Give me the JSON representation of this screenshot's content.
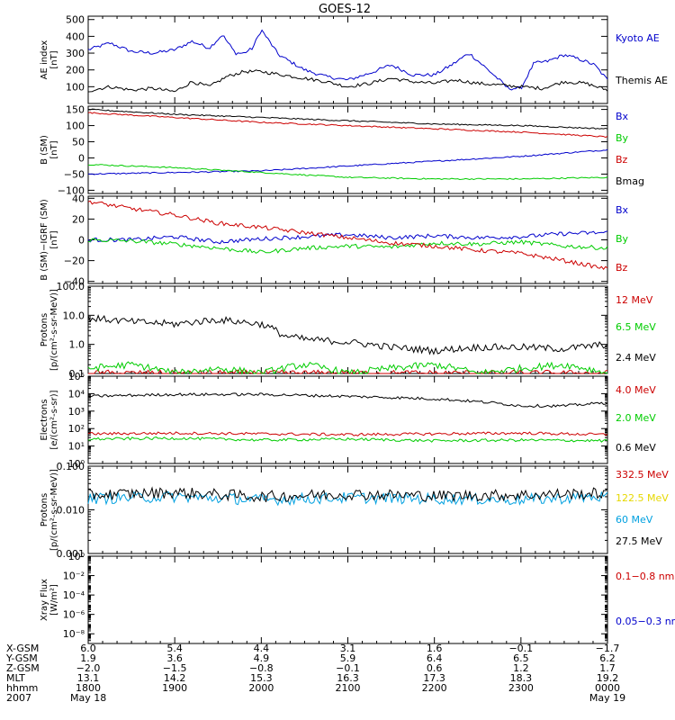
{
  "chart_data": {
    "type": "line",
    "title": "GOES-12",
    "x_range_hours": [
      18,
      24
    ],
    "panels": [
      {
        "id": "ae",
        "ylabel": [
          "AE index",
          "[nT]"
        ],
        "scale": "linear",
        "ylim": [
          0,
          520
        ],
        "ticks": [
          100,
          200,
          300,
          400,
          500
        ],
        "tick_labels": [
          "100",
          "200",
          "300",
          "400",
          "500"
        ],
        "series": [
          {
            "name": "Kyoto AE",
            "color": "#0000cc",
            "x": [
              18.0,
              18.25,
              18.5,
              18.75,
              19.0,
              19.2,
              19.4,
              19.55,
              19.7,
              19.8,
              19.9,
              20.0,
              20.2,
              20.5,
              20.75,
              21.0,
              21.25,
              21.5,
              21.75,
              22.0,
              22.2,
              22.4,
              22.6,
              22.75,
              22.85,
              23.0,
              23.15,
              23.3,
              23.5,
              23.7,
              23.85,
              24.0
            ],
            "values": [
              320,
              360,
              310,
              300,
              320,
              370,
              330,
              410,
              300,
              300,
              330,
              440,
              290,
              200,
              160,
              140,
              180,
              230,
              170,
              170,
              230,
              300,
              210,
              140,
              90,
              90,
              240,
              250,
              290,
              260,
              230,
              140
            ]
          },
          {
            "name": "Themis AE",
            "color": "#000000",
            "x": [
              18.0,
              18.25,
              18.5,
              18.75,
              19.0,
              19.2,
              19.4,
              19.6,
              19.8,
              20.0,
              20.25,
              20.5,
              20.75,
              21.0,
              21.25,
              21.5,
              21.75,
              22.0,
              22.25,
              22.5,
              22.75,
              23.0,
              23.25,
              23.5,
              23.75,
              24.0
            ],
            "values": [
              75,
              100,
              80,
              90,
              70,
              130,
              100,
              160,
              190,
              190,
              170,
              150,
              130,
              100,
              120,
              150,
              130,
              120,
              140,
              120,
              110,
              100,
              90,
              130,
              120,
              80
            ]
          }
        ]
      },
      {
        "id": "b-sm",
        "ylabel": [
          "B (SM)",
          "[nT]"
        ],
        "scale": "linear",
        "ylim": [
          -110,
          160
        ],
        "ticks": [
          -100,
          -50,
          0,
          50,
          100,
          150
        ],
        "tick_labels": [
          "−100",
          "−50",
          "0",
          "50",
          "100",
          "150"
        ],
        "series": [
          {
            "name": "Bx",
            "color": "#0000cc",
            "x": [
              18.0,
              19.0,
              20.0,
              21.0,
              22.0,
              23.0,
              24.0
            ],
            "values": [
              -50,
              -45,
              -40,
              -25,
              -10,
              5,
              25
            ]
          },
          {
            "name": "By",
            "color": "#00cc00",
            "x": [
              18.0,
              19.0,
              20.0,
              21.0,
              22.0,
              23.0,
              24.0
            ],
            "values": [
              -20,
              -30,
              -45,
              -60,
              -65,
              -65,
              -60
            ]
          },
          {
            "name": "Bz",
            "color": "#cc0000",
            "x": [
              18.0,
              19.0,
              20.0,
              21.0,
              22.0,
              23.0,
              24.0
            ],
            "values": [
              140,
              125,
              110,
              100,
              90,
              80,
              65
            ]
          },
          {
            "name": "Bmag",
            "color": "#000000",
            "x": [
              18.0,
              19.0,
              20.0,
              21.0,
              22.0,
              23.0,
              24.0
            ],
            "values": [
              150,
              135,
              125,
              115,
              105,
              100,
              90
            ]
          }
        ]
      },
      {
        "id": "b-minus-igrf",
        "ylabel": [
          "B (SM)−IGRF (SM)",
          "[nT]"
        ],
        "scale": "linear",
        "ylim": [
          -42,
          42
        ],
        "ticks": [
          -40,
          -20,
          0,
          20,
          40
        ],
        "tick_labels": [
          "−40",
          "−20",
          "0",
          "20",
          "40"
        ],
        "series": [
          {
            "name": "Bx",
            "color": "#0000cc",
            "x": [
              18.0,
              18.5,
              19.0,
              19.5,
              20.0,
              20.5,
              21.0,
              21.5,
              22.0,
              22.5,
              23.0,
              23.5,
              24.0
            ],
            "values": [
              0,
              0,
              3,
              -2,
              1,
              3,
              5,
              2,
              4,
              2,
              3,
              6,
              7
            ]
          },
          {
            "name": "By",
            "color": "#00cc00",
            "x": [
              18.0,
              18.5,
              19.0,
              19.5,
              20.0,
              20.5,
              21.0,
              21.5,
              22.0,
              22.5,
              23.0,
              23.5,
              24.0
            ],
            "values": [
              0,
              -1,
              -4,
              -8,
              -12,
              -8,
              -6,
              -7,
              -3,
              -4,
              -2,
              -6,
              -8
            ]
          },
          {
            "name": "Bz",
            "color": "#cc0000",
            "x": [
              18.0,
              18.5,
              19.0,
              19.5,
              20.0,
              20.5,
              21.0,
              21.5,
              22.0,
              22.5,
              23.0,
              23.5,
              24.0
            ],
            "values": [
              37,
              30,
              24,
              16,
              12,
              7,
              2,
              -3,
              -6,
              -10,
              -13,
              -20,
              -28
            ]
          }
        ]
      },
      {
        "id": "protons-low",
        "ylabel": [
          "Protons",
          "[p/(cm²-s-sr-MeV)]"
        ],
        "scale": "log",
        "ylim": [
          0.1,
          100
        ],
        "ticks": [
          0.1,
          1,
          10,
          100
        ],
        "tick_labels": [
          "0.1",
          "1.0",
          "10.0",
          "100.0"
        ],
        "series": [
          {
            "name": "12 MeV",
            "color": "#cc0000",
            "x": [
              18.0,
              24.0
            ],
            "values": [
              0.1,
              0.1
            ]
          },
          {
            "name": "6.5 MeV",
            "color": "#00cc00",
            "x": [
              18.0,
              18.5,
              19.0,
              19.5,
              20.0,
              20.5,
              21.0,
              21.5,
              22.0,
              22.5,
              23.0,
              23.5,
              24.0
            ],
            "values": [
              0.15,
              0.2,
              0.1,
              0.15,
              0.1,
              0.2,
              0.1,
              0.15,
              0.2,
              0.1,
              0.15,
              0.2,
              0.1
            ]
          },
          {
            "name": "2.4 MeV",
            "color": "#000000",
            "x": [
              18.0,
              18.5,
              19.0,
              19.5,
              20.0,
              20.25,
              20.5,
              21.0,
              21.5,
              22.0,
              22.5,
              23.0,
              23.5,
              24.0
            ],
            "values": [
              8,
              6,
              5,
              7,
              5,
              2,
              1.5,
              1.2,
              0.8,
              0.6,
              0.8,
              0.8,
              0.7,
              1.0
            ]
          }
        ]
      },
      {
        "id": "electrons",
        "ylabel": [
          "Electrons",
          "[e/(cm²-s-sr)]"
        ],
        "scale": "log",
        "ylim": [
          1,
          100000
        ],
        "ticks": [
          1,
          10,
          100,
          1000,
          10000,
          100000
        ],
        "tick_labels": [
          "10⁰",
          "10¹",
          "10²",
          "10³",
          "10⁴",
          "10⁵"
        ],
        "series": [
          {
            "name": "4.0 MeV",
            "color": "#cc0000",
            "x": [
              18.0,
              19.0,
              20.0,
              21.0,
              22.0,
              23.0,
              24.0
            ],
            "values": [
              50,
              55,
              50,
              45,
              50,
              55,
              45
            ]
          },
          {
            "name": "2.0 MeV",
            "color": "#00cc00",
            "x": [
              18.0,
              19.0,
              20.0,
              21.0,
              22.0,
              23.0,
              24.0
            ],
            "values": [
              25,
              28,
              22,
              25,
              20,
              22,
              20
            ]
          },
          {
            "name": "0.6 MeV",
            "color": "#000000",
            "x": [
              18.0,
              19.0,
              20.0,
              21.0,
              22.0,
              22.5,
              23.0,
              23.5,
              24.0
            ],
            "values": [
              7000,
              9000,
              9000,
              7000,
              5000,
              3500,
              2000,
              2000,
              3000
            ]
          }
        ]
      },
      {
        "id": "protons-high",
        "ylabel": [
          "Protons",
          "[p/(cm²-s-sr-MeV)]"
        ],
        "scale": "log",
        "ylim": [
          0.001,
          0.1
        ],
        "ticks": [
          0.001,
          0.01,
          0.1
        ],
        "tick_labels": [
          "0.001",
          "0.010",
          "0.100"
        ],
        "series": [
          {
            "name": "332.5 MeV",
            "color": "#cc0000",
            "x": [],
            "values": []
          },
          {
            "name": "122.5 MeV",
            "color": "#e6d800",
            "x": [],
            "values": []
          },
          {
            "name": "60 MeV",
            "color": "#00a0e0",
            "x": [
              18.0,
              19.0,
              20.0,
              21.0,
              22.0,
              23.0,
              24.0
            ],
            "values": [
              0.018,
              0.02,
              0.017,
              0.019,
              0.018,
              0.017,
              0.02
            ]
          },
          {
            "name": "27.5 MeV",
            "color": "#000000",
            "x": [
              18.0,
              19.0,
              20.0,
              21.0,
              22.0,
              23.0,
              24.0
            ],
            "values": [
              0.022,
              0.025,
              0.02,
              0.023,
              0.021,
              0.022,
              0.024
            ]
          }
        ]
      },
      {
        "id": "xray",
        "ylabel": [
          "Xray Flux",
          "[W/m²]"
        ],
        "scale": "log",
        "ylim": [
          1e-09,
          1
        ],
        "ticks": [
          1e-08,
          1e-06,
          0.0001,
          0.01,
          1
        ],
        "tick_labels": [
          "10⁻⁸",
          "10⁻⁶",
          "10⁻⁴",
          "10⁻²",
          "10⁰"
        ],
        "series": [
          {
            "name": "0.1−0.8 nm",
            "color": "#cc0000",
            "x": [],
            "values": []
          },
          {
            "name": "0.05−0.3 nm",
            "color": "#0000cc",
            "x": [],
            "values": []
          }
        ]
      }
    ],
    "ephemeris": {
      "row_labels": [
        "X-GSM",
        "Y-GSM",
        "Z-GSM",
        "MLT",
        "hhmm",
        "2007"
      ],
      "columns": [
        {
          "hour": 18,
          "values": [
            "6.0",
            "1.9",
            "−2.0",
            "13.1",
            "1800",
            "May 18"
          ]
        },
        {
          "hour": 19,
          "values": [
            "5.4",
            "3.6",
            "−1.5",
            "14.2",
            "1900",
            ""
          ]
        },
        {
          "hour": 20,
          "values": [
            "4.4",
            "4.9",
            "−0.8",
            "15.3",
            "2000",
            ""
          ]
        },
        {
          "hour": 21,
          "values": [
            "3.1",
            "5.9",
            "−0.1",
            "16.3",
            "2100",
            ""
          ]
        },
        {
          "hour": 22,
          "values": [
            "1.6",
            "6.4",
            "0.6",
            "17.3",
            "2200",
            ""
          ]
        },
        {
          "hour": 23,
          "values": [
            "−0.1",
            "6.5",
            "1.2",
            "18.3",
            "2300",
            ""
          ]
        },
        {
          "hour": 24,
          "values": [
            "−1.7",
            "6.2",
            "1.7",
            "19.2",
            "0000",
            "May 19"
          ]
        }
      ]
    }
  }
}
